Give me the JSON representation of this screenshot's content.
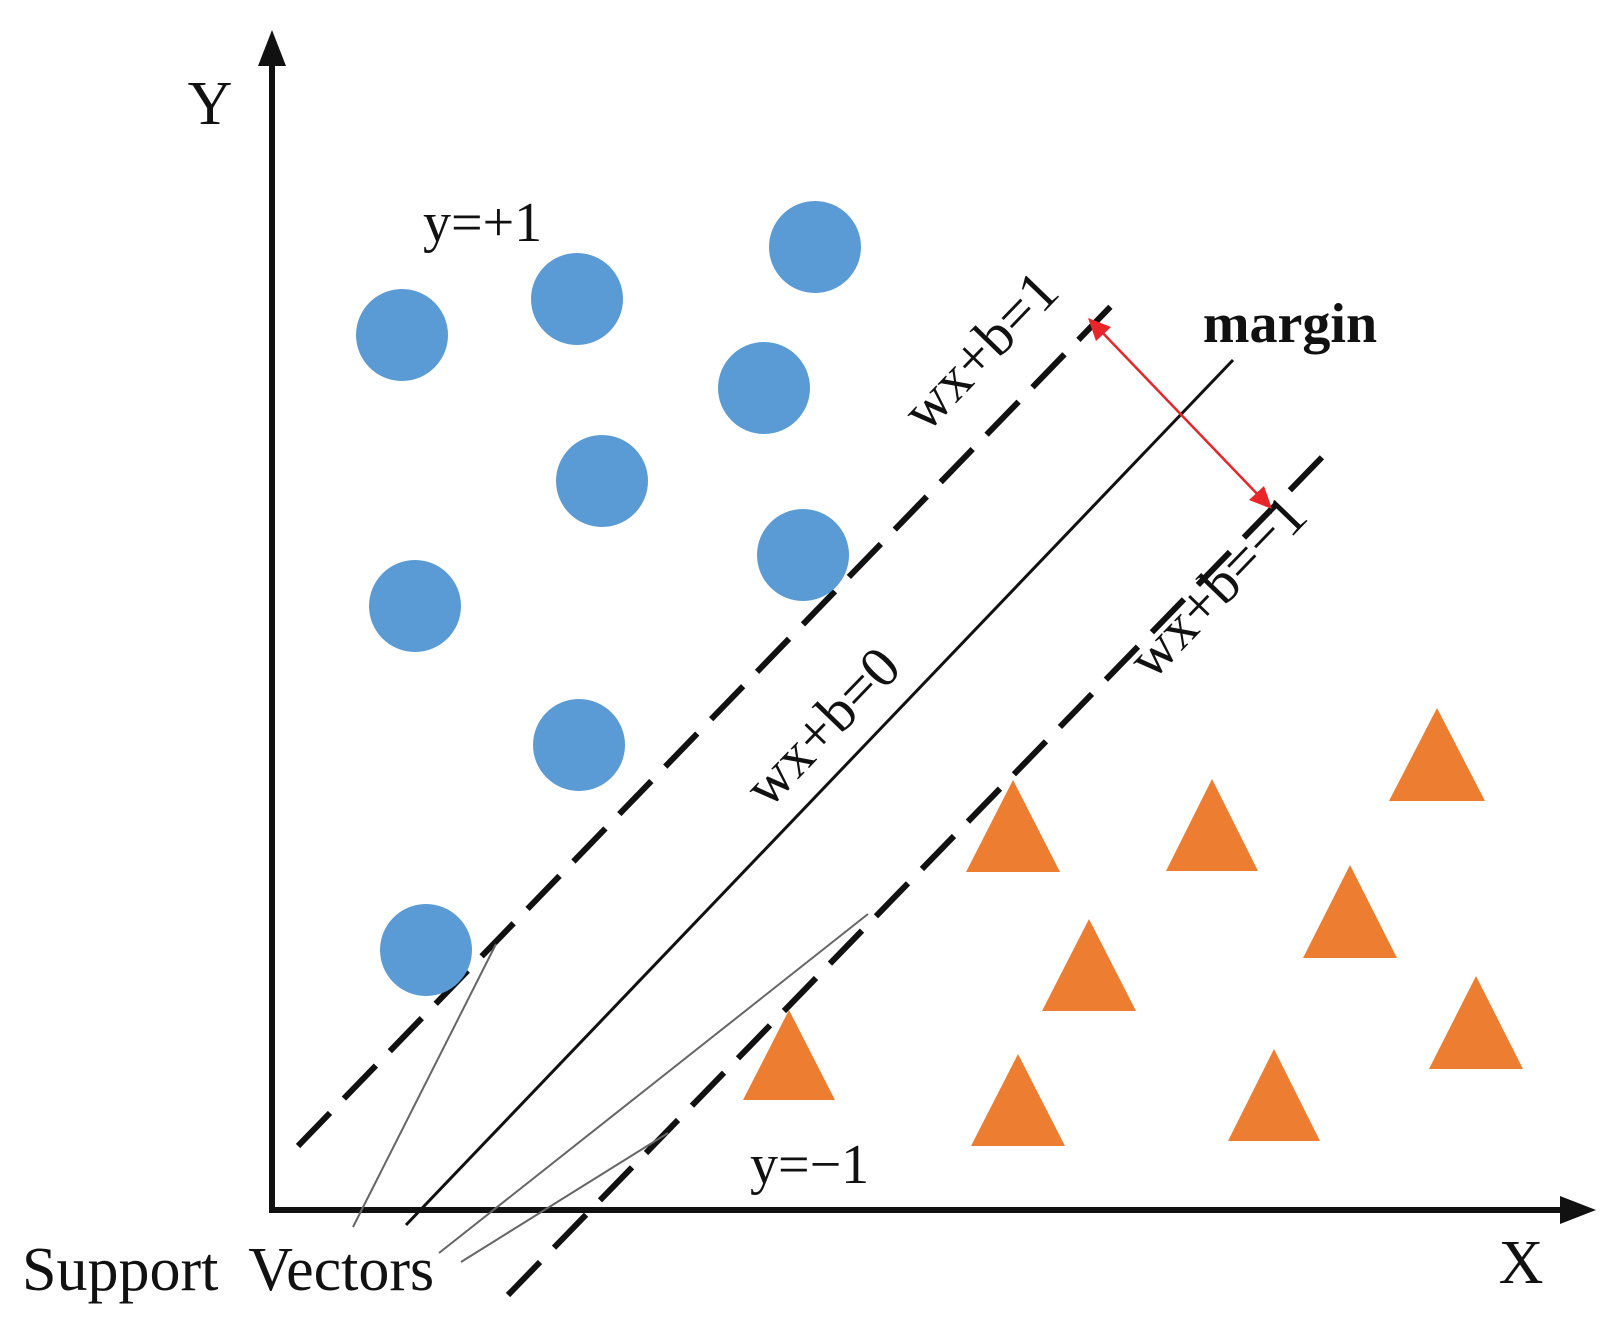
{
  "diagram": {
    "axes": {
      "x_label": "X",
      "y_label": "Y"
    },
    "class_labels": {
      "positive": "y=+1",
      "negative": "y=−1"
    },
    "hyperplanes": {
      "upper": "wx+b=1",
      "center": "wx+b=0",
      "lower": "wx+b=−1"
    },
    "margin_label": "margin",
    "support_vectors_label": "Support  Vectors",
    "colors": {
      "positive_class": "#5B9BD5",
      "negative_class": "#ED7D31",
      "margin_arrow": "#E8262A",
      "lines": "#111111",
      "leader_lines": "#666666"
    },
    "markers": {
      "positive_class_shape": "circle",
      "negative_class_shape": "triangle"
    }
  }
}
